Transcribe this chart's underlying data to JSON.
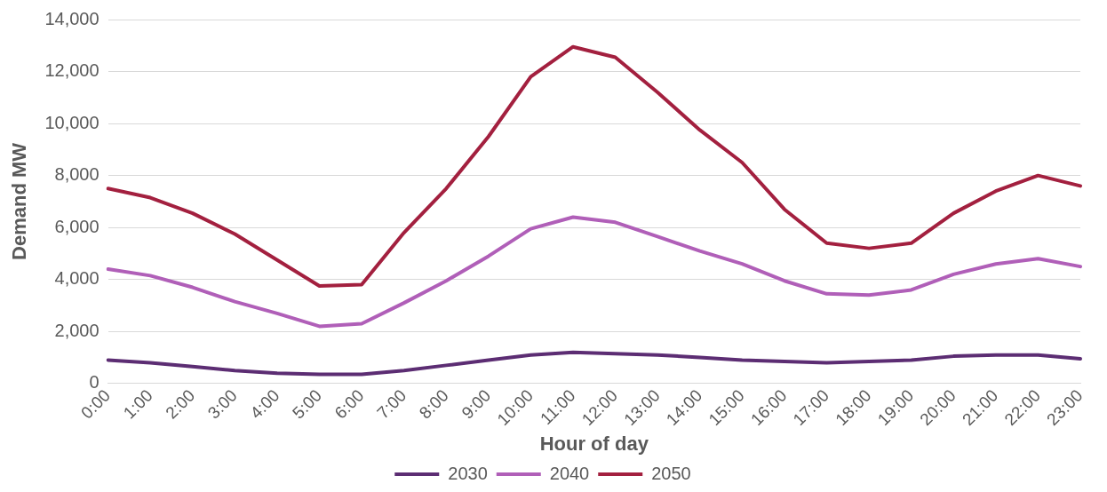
{
  "chart_data": {
    "type": "line",
    "xlabel": "Hour of day",
    "ylabel": "Demand MW",
    "categories": [
      "0:00",
      "1:00",
      "2:00",
      "3:00",
      "4:00",
      "5:00",
      "6:00",
      "7:00",
      "8:00",
      "9:00",
      "10:00",
      "11:00",
      "12:00",
      "13:00",
      "14:00",
      "15:00",
      "16:00",
      "17:00",
      "18:00",
      "19:00",
      "20:00",
      "21:00",
      "22:00",
      "23:00"
    ],
    "series": [
      {
        "name": "2030",
        "color": "#5c2d73",
        "values": [
          900,
          800,
          650,
          500,
          400,
          350,
          350,
          500,
          700,
          900,
          1100,
          1200,
          1150,
          1100,
          1000,
          900,
          850,
          800,
          850,
          900,
          1050,
          1100,
          1100,
          950
        ]
      },
      {
        "name": "2040",
        "color": "#b05fb8",
        "values": [
          4400,
          4150,
          3700,
          3150,
          2700,
          2200,
          2300,
          3100,
          3950,
          4900,
          5950,
          6400,
          6200,
          5650,
          5100,
          4600,
          3950,
          3450,
          3400,
          3600,
          4200,
          4600,
          4800,
          4500
        ]
      },
      {
        "name": "2050",
        "color": "#a3203f",
        "values": [
          7500,
          7150,
          6550,
          5750,
          4750,
          3750,
          3800,
          5800,
          7500,
          9500,
          11800,
          12950,
          12550,
          11200,
          9750,
          8500,
          6700,
          5400,
          5200,
          5400,
          6550,
          7400,
          8000,
          7600
        ]
      }
    ],
    "ylim": [
      0,
      14000
    ],
    "yticks": [
      0,
      {
        "value": 2000,
        "label": "2,000"
      },
      {
        "value": 4000,
        "label": "4,000"
      },
      {
        "value": 6000,
        "label": "6,000"
      },
      {
        "value": 8000,
        "label": "8,000"
      },
      {
        "value": 10000,
        "label": "10,000"
      },
      {
        "value": 12000,
        "label": "12,000"
      },
      {
        "value": 14000,
        "label": "14,000"
      }
    ],
    "grid": "y",
    "legend": "bottom",
    "marker": "none",
    "line_style": "solid"
  }
}
